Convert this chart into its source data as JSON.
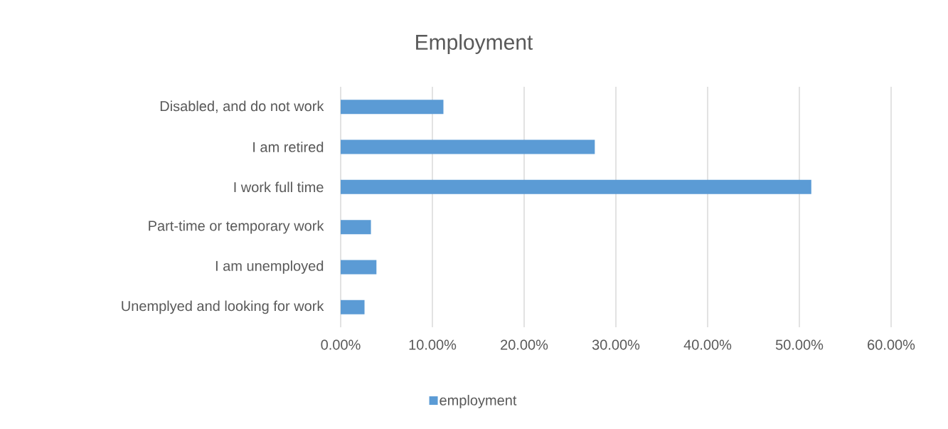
{
  "chart_data": {
    "type": "bar",
    "orientation": "horizontal",
    "title": "Employment",
    "categories": [
      "Disabled, and do not work",
      "I am retired",
      "I work full time",
      "Part-time or temporary work",
      "I am unemployed",
      "Unemplyed and looking for work"
    ],
    "series": [
      {
        "name": "employment",
        "color": "#5b9bd5",
        "values": [
          11.2,
          27.7,
          51.3,
          3.3,
          3.9,
          2.6
        ]
      }
    ],
    "xlim": [
      0,
      60
    ],
    "xticks": [
      {
        "value": 0,
        "label": "0.00%"
      },
      {
        "value": 10,
        "label": "10.00%"
      },
      {
        "value": 20,
        "label": "20.00%"
      },
      {
        "value": 30,
        "label": "30.00%"
      },
      {
        "value": 40,
        "label": "40.00%"
      },
      {
        "value": 50,
        "label": "50.00%"
      },
      {
        "value": 60,
        "label": "60.00%"
      }
    ],
    "grid": "x",
    "legend": "bottom"
  }
}
